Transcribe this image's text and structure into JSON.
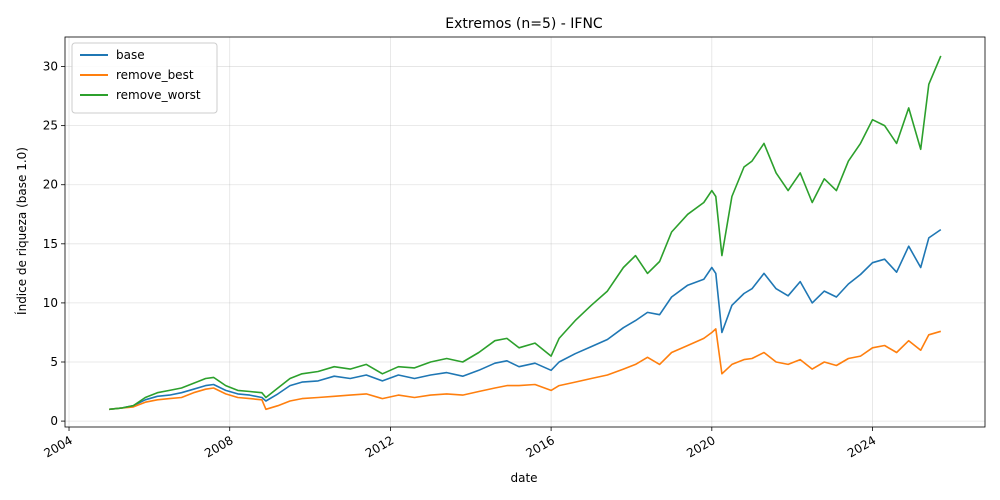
{
  "chart_data": {
    "type": "line",
    "title": "Extremos (n=5) - IFNC",
    "xlabel": "date",
    "ylabel": "Índice de riqueza (base 1.0)",
    "xlim": [
      2003.9,
      2026.8
    ],
    "ylim": [
      -0.5,
      32.5
    ],
    "grid": true,
    "legend": "top-left",
    "x_ticks": [
      {
        "value": 2004,
        "label": "2004"
      },
      {
        "value": 2008,
        "label": "2008"
      },
      {
        "value": 2012,
        "label": "2012"
      },
      {
        "value": 2016,
        "label": "2016"
      },
      {
        "value": 2020,
        "label": "2020"
      },
      {
        "value": 2024,
        "label": "2024"
      }
    ],
    "y_ticks": [
      {
        "value": 0,
        "label": "0"
      },
      {
        "value": 5,
        "label": "5"
      },
      {
        "value": 10,
        "label": "10"
      },
      {
        "value": 15,
        "label": "15"
      },
      {
        "value": 20,
        "label": "20"
      },
      {
        "value": 25,
        "label": "25"
      },
      {
        "value": 30,
        "label": "30"
      }
    ],
    "series": [
      {
        "name": "base",
        "color": "#1f77b4",
        "x": [
          2005.0,
          2005.3,
          2005.6,
          2005.9,
          2006.2,
          2006.5,
          2006.8,
          2007.1,
          2007.4,
          2007.6,
          2007.9,
          2008.2,
          2008.5,
          2008.8,
          2008.9,
          2009.2,
          2009.5,
          2009.8,
          2010.2,
          2010.6,
          2011.0,
          2011.4,
          2011.8,
          2012.2,
          2012.6,
          2013.0,
          2013.4,
          2013.8,
          2014.2,
          2014.6,
          2014.9,
          2015.2,
          2015.6,
          2016.0,
          2016.2,
          2016.6,
          2017.0,
          2017.4,
          2017.8,
          2018.1,
          2018.4,
          2018.7,
          2019.0,
          2019.4,
          2019.8,
          2020.0,
          2020.1,
          2020.25,
          2020.5,
          2020.8,
          2021.0,
          2021.3,
          2021.6,
          2021.9,
          2022.2,
          2022.5,
          2022.8,
          2023.1,
          2023.4,
          2023.7,
          2024.0,
          2024.3,
          2024.6,
          2024.9,
          2025.2,
          2025.4,
          2025.7
        ],
        "y": [
          1.0,
          1.1,
          1.3,
          1.8,
          2.1,
          2.2,
          2.4,
          2.7,
          3.0,
          3.1,
          2.6,
          2.3,
          2.2,
          2.0,
          1.7,
          2.3,
          3.0,
          3.3,
          3.4,
          3.8,
          3.6,
          3.9,
          3.4,
          3.9,
          3.6,
          3.9,
          4.1,
          3.8,
          4.3,
          4.9,
          5.1,
          4.6,
          4.9,
          4.3,
          5.0,
          5.7,
          6.3,
          6.9,
          7.9,
          8.5,
          9.2,
          9.0,
          10.5,
          11.5,
          12.0,
          13.0,
          12.5,
          7.5,
          9.8,
          10.8,
          11.2,
          12.5,
          11.2,
          10.6,
          11.8,
          10.0,
          11.0,
          10.5,
          11.6,
          12.4,
          13.4,
          13.7,
          12.6,
          14.8,
          13.0,
          15.5,
          16.2
        ]
      },
      {
        "name": "remove_best",
        "color": "#ff7f0e",
        "x": [
          2005.0,
          2005.3,
          2005.6,
          2005.9,
          2006.2,
          2006.5,
          2006.8,
          2007.1,
          2007.4,
          2007.6,
          2007.9,
          2008.2,
          2008.5,
          2008.8,
          2008.9,
          2009.2,
          2009.5,
          2009.8,
          2010.2,
          2010.6,
          2011.0,
          2011.4,
          2011.8,
          2012.2,
          2012.6,
          2013.0,
          2013.4,
          2013.8,
          2014.2,
          2014.6,
          2014.9,
          2015.2,
          2015.6,
          2016.0,
          2016.2,
          2016.6,
          2017.0,
          2017.4,
          2017.8,
          2018.1,
          2018.4,
          2018.7,
          2019.0,
          2019.4,
          2019.8,
          2020.0,
          2020.1,
          2020.25,
          2020.5,
          2020.8,
          2021.0,
          2021.3,
          2021.6,
          2021.9,
          2022.2,
          2022.5,
          2022.8,
          2023.1,
          2023.4,
          2023.7,
          2024.0,
          2024.3,
          2024.6,
          2024.9,
          2025.2,
          2025.4,
          2025.7
        ],
        "y": [
          1.0,
          1.1,
          1.2,
          1.6,
          1.8,
          1.9,
          2.0,
          2.4,
          2.7,
          2.8,
          2.3,
          2.0,
          1.9,
          1.8,
          1.0,
          1.3,
          1.7,
          1.9,
          2.0,
          2.1,
          2.2,
          2.3,
          1.9,
          2.2,
          2.0,
          2.2,
          2.3,
          2.2,
          2.5,
          2.8,
          3.0,
          3.0,
          3.1,
          2.6,
          3.0,
          3.3,
          3.6,
          3.9,
          4.4,
          4.8,
          5.4,
          4.8,
          5.8,
          6.4,
          7.0,
          7.5,
          7.8,
          4.0,
          4.8,
          5.2,
          5.3,
          5.8,
          5.0,
          4.8,
          5.2,
          4.4,
          5.0,
          4.7,
          5.3,
          5.5,
          6.2,
          6.4,
          5.8,
          6.8,
          6.0,
          7.3,
          7.6
        ]
      },
      {
        "name": "remove_worst",
        "color": "#2ca02c",
        "x": [
          2005.0,
          2005.3,
          2005.6,
          2005.9,
          2006.2,
          2006.5,
          2006.8,
          2007.1,
          2007.4,
          2007.6,
          2007.9,
          2008.2,
          2008.5,
          2008.8,
          2008.9,
          2009.2,
          2009.5,
          2009.8,
          2010.2,
          2010.6,
          2011.0,
          2011.4,
          2011.8,
          2012.2,
          2012.6,
          2013.0,
          2013.4,
          2013.8,
          2014.2,
          2014.6,
          2014.9,
          2015.2,
          2015.6,
          2016.0,
          2016.2,
          2016.6,
          2017.0,
          2017.4,
          2017.8,
          2018.1,
          2018.4,
          2018.7,
          2019.0,
          2019.4,
          2019.8,
          2020.0,
          2020.1,
          2020.25,
          2020.5,
          2020.8,
          2021.0,
          2021.3,
          2021.6,
          2021.9,
          2022.2,
          2022.5,
          2022.8,
          2023.1,
          2023.4,
          2023.7,
          2024.0,
          2024.3,
          2024.6,
          2024.9,
          2025.2,
          2025.4,
          2025.7
        ],
        "y": [
          1.0,
          1.1,
          1.3,
          2.0,
          2.4,
          2.6,
          2.8,
          3.2,
          3.6,
          3.7,
          3.0,
          2.6,
          2.5,
          2.4,
          2.0,
          2.8,
          3.6,
          4.0,
          4.2,
          4.6,
          4.4,
          4.8,
          4.0,
          4.6,
          4.5,
          5.0,
          5.3,
          5.0,
          5.8,
          6.8,
          7.0,
          6.2,
          6.6,
          5.5,
          7.0,
          8.5,
          9.8,
          11.0,
          13.0,
          14.0,
          12.5,
          13.5,
          16.0,
          17.5,
          18.5,
          19.5,
          19.0,
          14.0,
          19.0,
          21.5,
          22.0,
          23.5,
          21.0,
          19.5,
          21.0,
          18.5,
          20.5,
          19.5,
          22.0,
          23.5,
          25.5,
          25.0,
          23.5,
          26.5,
          23.0,
          28.5,
          30.9
        ]
      }
    ]
  }
}
